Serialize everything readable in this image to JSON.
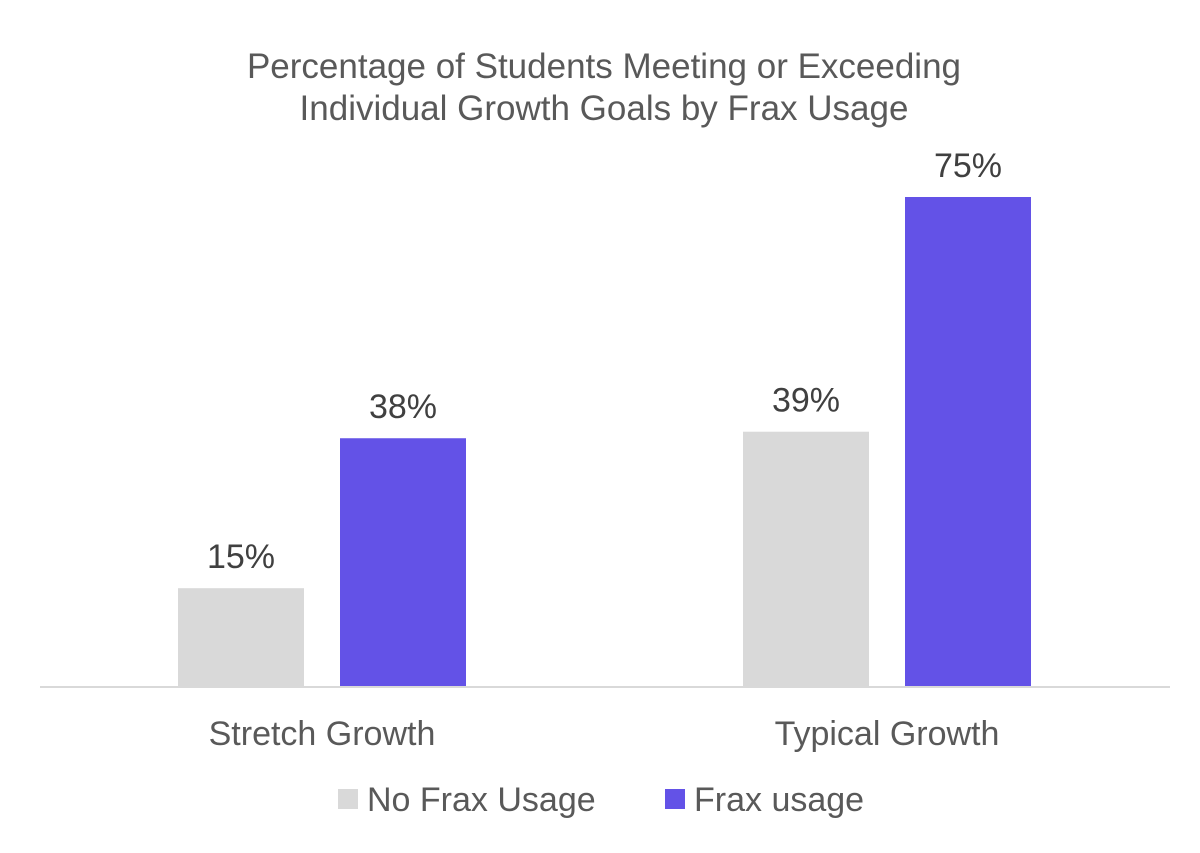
{
  "chart_data": {
    "type": "bar",
    "title": "Percentage of Students Meeting or Exceeding Individual Growth Goals by Frax Usage",
    "title_lines": [
      "Percentage of Students Meeting or Exceeding",
      "Individual Growth Goals by Frax Usage"
    ],
    "xlabel": "",
    "ylabel": "",
    "categories": [
      "Stretch Growth",
      "Typical Growth"
    ],
    "series": [
      {
        "name": "No Frax Usage",
        "values": [
          15,
          39
        ],
        "labels": [
          "15%",
          "39%"
        ],
        "color": "#d9d9d9"
      },
      {
        "name": "Frax usage",
        "values": [
          38,
          75
        ],
        "labels": [
          "38%",
          "75%"
        ],
        "color": "#6352e7"
      }
    ],
    "ylim": [
      0,
      75
    ],
    "grid": false,
    "y_axis_visible": false,
    "legend": "bottom",
    "axis_color": "#d9d9d9"
  }
}
